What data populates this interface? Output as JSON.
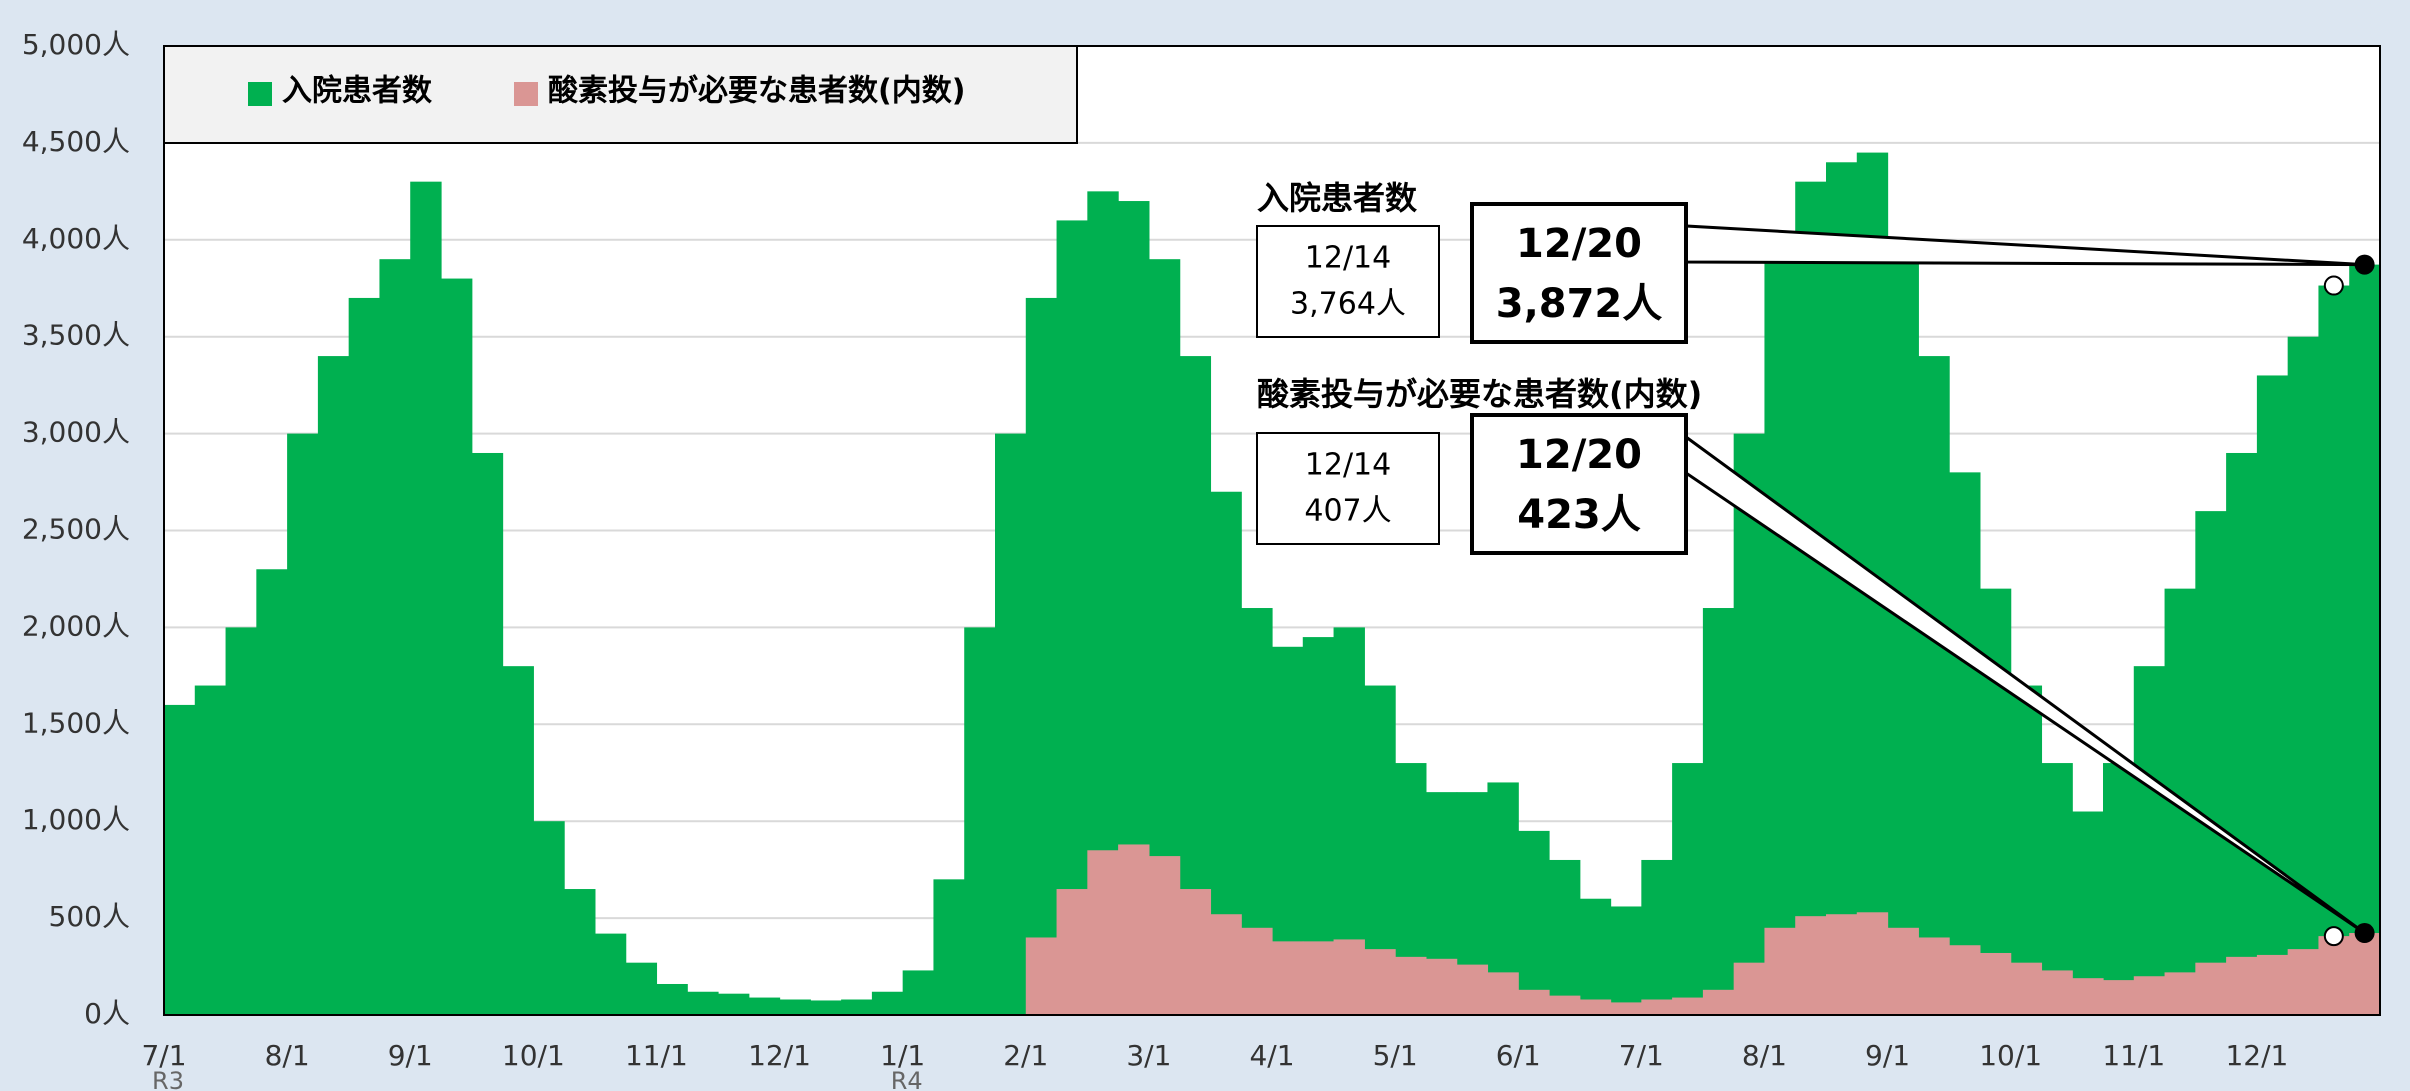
{
  "chart_data": {
    "type": "bar",
    "categories": [
      "7/1",
      null,
      null,
      null,
      "8/1",
      null,
      null,
      null,
      "9/1",
      null,
      null,
      null,
      "10/1",
      null,
      null,
      null,
      "11/1",
      null,
      null,
      null,
      "12/1",
      null,
      null,
      null,
      "1/1",
      null,
      null,
      null,
      "2/1",
      null,
      null,
      null,
      "3/1",
      null,
      null,
      null,
      "4/1",
      null,
      null,
      null,
      "5/1",
      null,
      null,
      null,
      "6/1",
      null,
      null,
      null,
      "7/1",
      null,
      null,
      null,
      "8/1",
      null,
      null,
      null,
      "9/1",
      null,
      null,
      null,
      "10/1",
      null,
      null,
      null,
      "11/1",
      null,
      null,
      null,
      "12/1",
      null,
      null,
      null
    ],
    "category_sublabels": [
      "R3",
      null,
      null,
      null,
      null,
      null,
      null,
      null,
      null,
      null,
      null,
      null,
      null,
      null,
      null,
      null,
      null,
      null,
      null,
      null,
      null,
      null,
      null,
      null,
      "R4",
      null,
      null,
      null,
      null,
      null,
      null,
      null,
      null,
      null,
      null,
      null,
      null,
      null,
      null,
      null,
      null,
      null,
      null,
      null,
      null,
      null,
      null,
      null,
      null,
      null,
      null,
      null,
      null,
      null,
      null,
      null,
      null,
      null,
      null,
      null,
      null,
      null,
      null,
      null,
      null,
      null,
      null,
      null,
      null,
      null,
      null,
      null
    ],
    "series": [
      {
        "name": "入院患者数",
        "color": "#00b050",
        "values": [
          1600,
          1700,
          2000,
          2300,
          3000,
          3400,
          3700,
          3900,
          4300,
          3800,
          2900,
          1800,
          1000,
          650,
          420,
          270,
          160,
          120,
          110,
          90,
          80,
          75,
          80,
          120,
          230,
          700,
          2000,
          3000,
          3700,
          4100,
          4250,
          4200,
          3900,
          3400,
          2700,
          2100,
          1900,
          1950,
          2000,
          1700,
          1300,
          1150,
          1150,
          1200,
          950,
          800,
          600,
          560,
          800,
          1300,
          2100,
          3000,
          3900,
          4300,
          4400,
          4450,
          4000,
          3400,
          2800,
          2200,
          1700,
          1300,
          1050,
          1300,
          1800,
          2200,
          2600,
          2900,
          3300,
          3500,
          3764,
          3872
        ]
      },
      {
        "name": "酸素投与が必要な患者数(内数)",
        "color": "#da9694",
        "values": [
          null,
          null,
          null,
          null,
          null,
          null,
          null,
          null,
          null,
          null,
          null,
          null,
          null,
          null,
          null,
          null,
          null,
          null,
          null,
          null,
          null,
          null,
          null,
          null,
          null,
          null,
          null,
          null,
          400,
          650,
          850,
          880,
          820,
          650,
          520,
          450,
          380,
          380,
          390,
          340,
          300,
          290,
          260,
          220,
          130,
          100,
          80,
          65,
          80,
          90,
          130,
          270,
          450,
          510,
          520,
          530,
          450,
          400,
          360,
          320,
          270,
          230,
          190,
          180,
          200,
          220,
          270,
          300,
          310,
          340,
          407,
          423
        ]
      }
    ],
    "ylim": [
      0,
      5000
    ],
    "yticks": [
      {
        "value": 0,
        "label": "0人"
      },
      {
        "value": 500,
        "label": "500人"
      },
      {
        "value": 1000,
        "label": "1,000人"
      },
      {
        "value": 1500,
        "label": "1,500人"
      },
      {
        "value": 2000,
        "label": "2,000人"
      },
      {
        "value": 2500,
        "label": "2,500人"
      },
      {
        "value": 3000,
        "label": "3,000人"
      },
      {
        "value": 3500,
        "label": "3,500人"
      },
      {
        "value": 4000,
        "label": "4,000人"
      },
      {
        "value": 4500,
        "label": "4,500人"
      },
      {
        "value": 5000,
        "label": "5,000人"
      }
    ],
    "grid": true,
    "legend": "top-left",
    "annotations": [
      {
        "title": "入院患者数",
        "earlier": {
          "date": "12/14",
          "label": "3,764人"
        },
        "latest": {
          "date": "12/20",
          "label": "3,872人"
        }
      },
      {
        "title": "酸素投与が必要な患者数(内数)",
        "earlier": {
          "date": "12/14",
          "label": "407人"
        },
        "latest": {
          "date": "12/20",
          "label": "423人"
        }
      }
    ]
  }
}
